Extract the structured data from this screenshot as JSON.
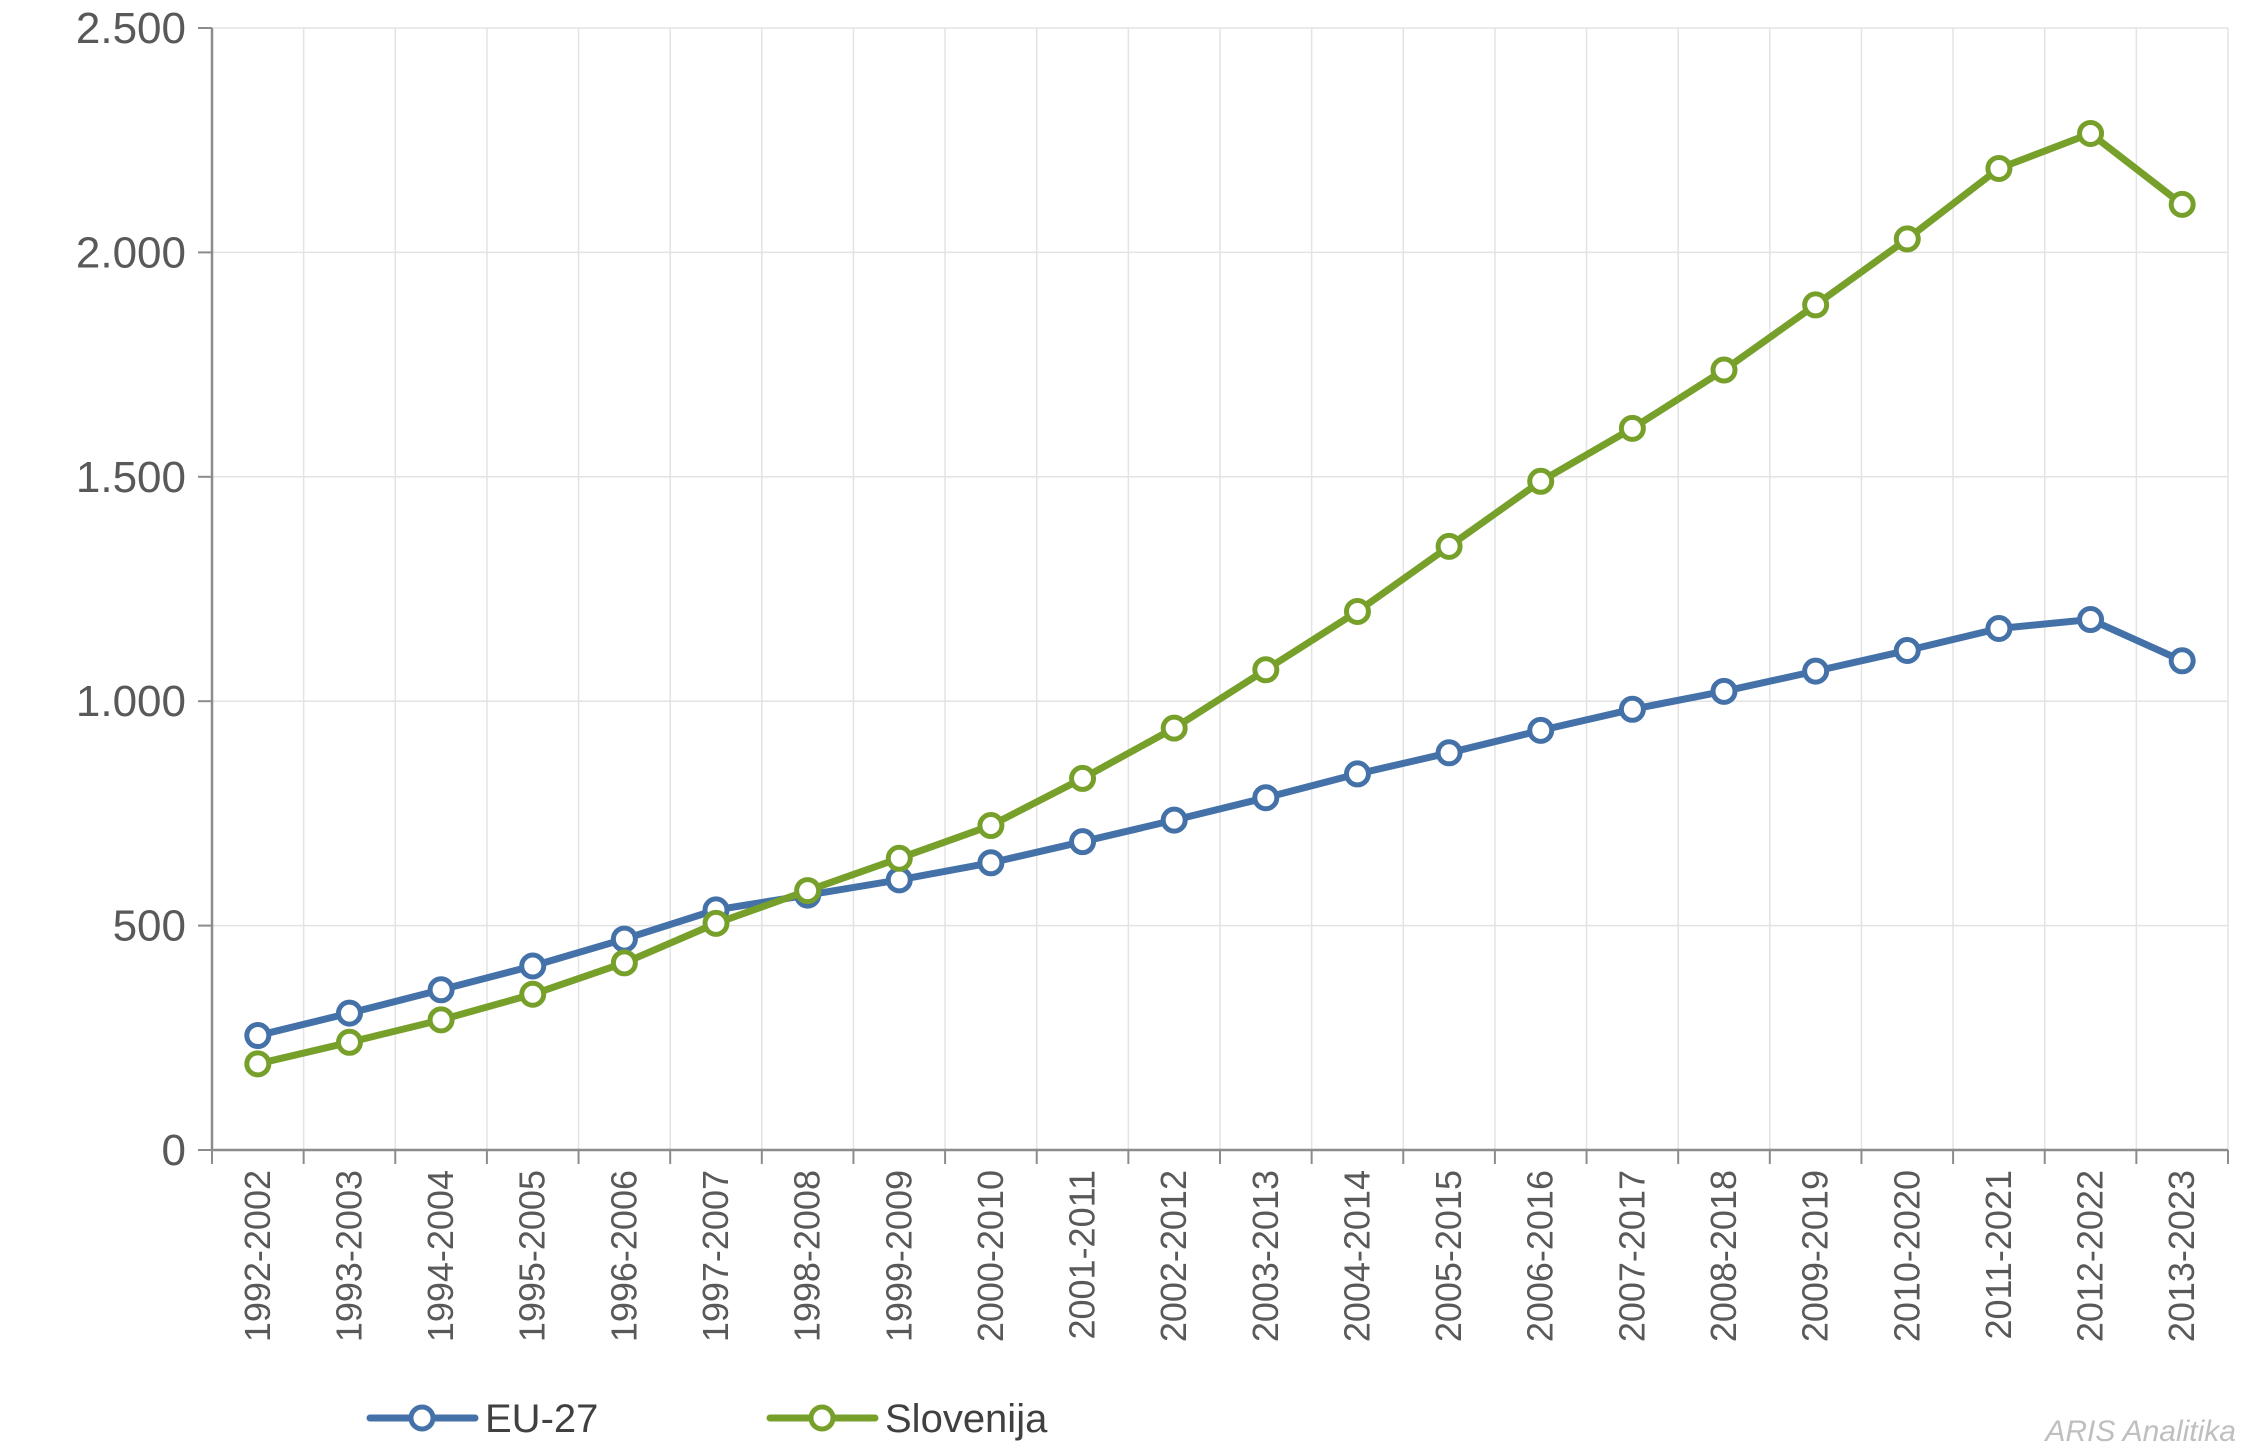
{
  "chart_data": {
    "type": "line",
    "title": "",
    "xlabel": "",
    "ylabel": "",
    "ylim": [
      0,
      2500
    ],
    "yticks": [
      0,
      500,
      1000,
      1500,
      2000,
      2500
    ],
    "ytick_labels": [
      "0",
      "500",
      "1.000",
      "1.500",
      "2.000",
      "2.500"
    ],
    "grid": true,
    "legend_position": "bottom-left",
    "categories": [
      "1992-2002",
      "1993-2003",
      "1994-2004",
      "1995-2005",
      "1996-2006",
      "1997-2007",
      "1998-2008",
      "1999-2009",
      "2000-2010",
      "2001-2011",
      "2002-2012",
      "2003-2013",
      "2004-2014",
      "2005-2015",
      "2006-2016",
      "2007-2017",
      "2008-2018",
      "2009-2019",
      "2010-2020",
      "2011-2021",
      "2012-2022",
      "2013-2023"
    ],
    "series": [
      {
        "name": "EU-27",
        "color": "#4472a8",
        "values": [
          255,
          305,
          357,
          410,
          470,
          535,
          568,
          602,
          640,
          687,
          735,
          785,
          838,
          885,
          935,
          982,
          1022,
          1067,
          1113,
          1162,
          1182,
          1090
        ]
      },
      {
        "name": "Slovenija",
        "color": "#77a02b",
        "values": [
          192,
          240,
          290,
          347,
          417,
          505,
          578,
          650,
          723,
          828,
          940,
          1070,
          1200,
          1345,
          1490,
          1608,
          1738,
          1883,
          2030,
          2187,
          2265,
          2107
        ]
      }
    ]
  },
  "watermark": "ARIS Analitika"
}
